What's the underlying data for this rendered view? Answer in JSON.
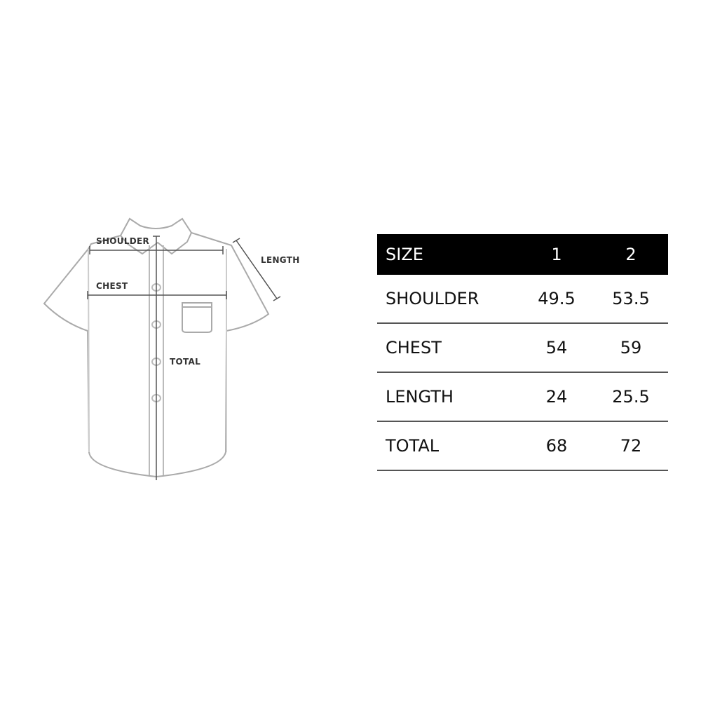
{
  "diagram": {
    "labels": {
      "shoulder": "SHOULDER",
      "chest": "CHEST",
      "length": "LENGTH",
      "total": "TOTAL"
    }
  },
  "table": {
    "headers": [
      "SIZE",
      "1",
      "2"
    ],
    "rows": [
      [
        "SHOULDER",
        "49.5",
        "53.5"
      ],
      [
        "CHEST",
        "54",
        "59"
      ],
      [
        "LENGTH",
        "24",
        "25.5"
      ],
      [
        "TOTAL",
        "68",
        "72"
      ]
    ]
  }
}
